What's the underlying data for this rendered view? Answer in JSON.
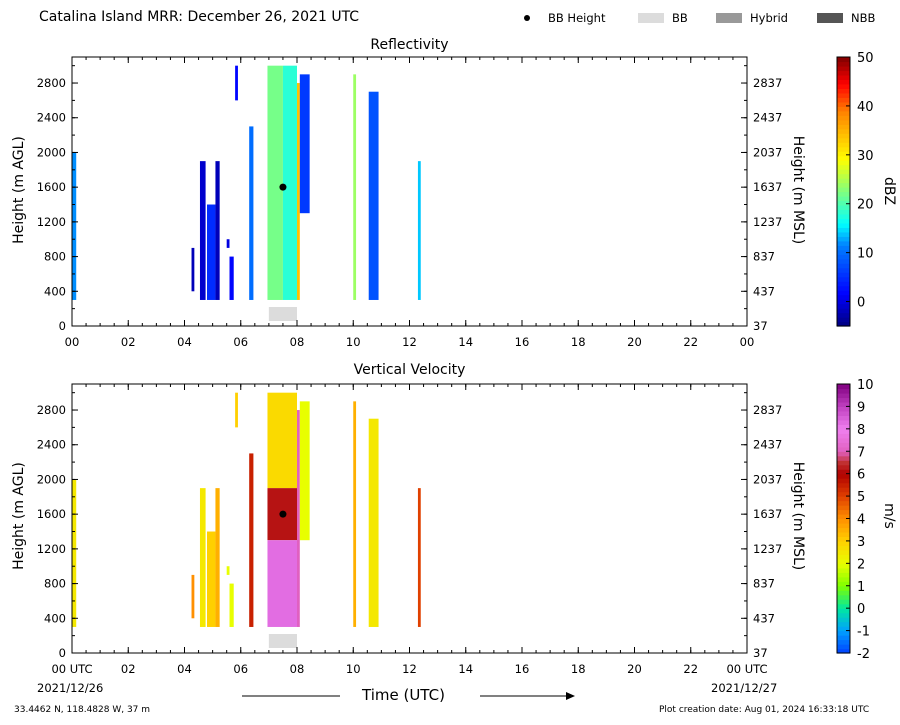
{
  "header": {
    "title": "Catalina Island MRR:  December 26, 2021 UTC",
    "legend": [
      {
        "label": "BB Height",
        "kind": "dot",
        "color": "#000000"
      },
      {
        "label": "BB",
        "kind": "swatch",
        "color": "#dcdcdc"
      },
      {
        "label": "Hybrid",
        "kind": "swatch",
        "color": "#999999"
      },
      {
        "label": "NBB",
        "kind": "swatch",
        "color": "#555555"
      }
    ]
  },
  "axes": {
    "left_label": "Height (m AGL)",
    "right_label": "Height (m MSL)",
    "x_label": "Time (UTC)",
    "y_ticks": [
      "0",
      "400",
      "800",
      "1200",
      "1600",
      "2000",
      "2400",
      "2800"
    ],
    "y_ticks_right": [
      "37",
      "437",
      "837",
      "1237",
      "1637",
      "2037",
      "2437",
      "2837"
    ],
    "x_ticks_top_panel": [
      "00",
      "02",
      "04",
      "06",
      "08",
      "10",
      "12",
      "14",
      "16",
      "18",
      "20",
      "22",
      "00"
    ],
    "x_ticks_bottom_panel": [
      "00 UTC",
      "02",
      "04",
      "06",
      "08",
      "10",
      "12",
      "14",
      "16",
      "18",
      "20",
      "22",
      "00 UTC"
    ],
    "start_date": "2021/12/26",
    "end_date": "2021/12/27"
  },
  "footer": {
    "location": "33.4462 N, 118.4828 W, 37 m",
    "created": "Plot creation date: Aug 01, 2024 16:33:18 UTC"
  },
  "chart_data": [
    {
      "type": "heatmap",
      "title": "Reflectivity",
      "xlabel": "",
      "ylabel": "Height (m AGL)",
      "x_range_hours": [
        0,
        24
      ],
      "ylim": [
        0,
        3100
      ],
      "colorbar": {
        "label": "dBZ",
        "range": [
          -5,
          50
        ],
        "ticks": [
          "0",
          "10",
          "20",
          "30",
          "40",
          "50"
        ]
      },
      "bb_height": [
        {
          "time_hour": 7.5,
          "height_m": 1600
        }
      ],
      "bb_bar": {
        "type": "BB",
        "start_hour": 7.0,
        "end_hour": 8.0
      },
      "echo_columns": [
        {
          "start_hour": 0.0,
          "end_hour": 0.15,
          "bottom_m": 300,
          "top_m": 2000,
          "value": 12
        },
        {
          "start_hour": 4.25,
          "end_hour": 4.35,
          "bottom_m": 400,
          "top_m": 900,
          "value": -2
        },
        {
          "start_hour": 4.55,
          "end_hour": 4.75,
          "bottom_m": 300,
          "top_m": 1900,
          "value": -1
        },
        {
          "start_hour": 4.8,
          "end_hour": 5.1,
          "bottom_m": 300,
          "top_m": 1400,
          "value": 5
        },
        {
          "start_hour": 5.1,
          "end_hour": 5.25,
          "bottom_m": 300,
          "top_m": 1900,
          "value": -2
        },
        {
          "start_hour": 5.5,
          "end_hour": 5.6,
          "bottom_m": 900,
          "top_m": 1000,
          "value": 0
        },
        {
          "start_hour": 5.6,
          "end_hour": 5.75,
          "bottom_m": 300,
          "top_m": 800,
          "value": 2
        },
        {
          "start_hour": 5.8,
          "end_hour": 5.9,
          "bottom_m": 2600,
          "top_m": 3000,
          "value": 2
        },
        {
          "start_hour": 6.3,
          "end_hour": 6.45,
          "bottom_m": 300,
          "top_m": 2300,
          "value": 10
        },
        {
          "start_hour": 6.95,
          "end_hour": 7.5,
          "bottom_m": 300,
          "top_m": 3000,
          "value": 22
        },
        {
          "start_hour": 7.5,
          "end_hour": 8.0,
          "bottom_m": 300,
          "top_m": 3000,
          "value": 18
        },
        {
          "start_hour": 8.0,
          "end_hour": 8.1,
          "bottom_m": 300,
          "top_m": 2800,
          "value": 34
        },
        {
          "start_hour": 8.1,
          "end_hour": 8.45,
          "bottom_m": 1300,
          "top_m": 2900,
          "value": 6
        },
        {
          "start_hour": 10.0,
          "end_hour": 10.1,
          "bottom_m": 300,
          "top_m": 2900,
          "value": 24
        },
        {
          "start_hour": 10.55,
          "end_hour": 10.9,
          "bottom_m": 300,
          "top_m": 2700,
          "value": 8
        },
        {
          "start_hour": 12.3,
          "end_hour": 12.4,
          "bottom_m": 300,
          "top_m": 1900,
          "value": 14
        }
      ]
    },
    {
      "type": "heatmap",
      "title": "Vertical Velocity",
      "xlabel": "Time (UTC)",
      "ylabel": "Height (m AGL)",
      "x_range_hours": [
        0,
        24
      ],
      "ylim": [
        0,
        3100
      ],
      "colorbar": {
        "label": "m/s",
        "range": [
          -2,
          10
        ],
        "ticks": [
          "-2",
          "-1",
          "0",
          "1",
          "2",
          "3",
          "4",
          "5",
          "6",
          "7",
          "8",
          "9",
          "10"
        ]
      },
      "bb_height": [
        {
          "time_hour": 7.5,
          "height_m": 1600
        }
      ],
      "bb_bar": {
        "type": "BB",
        "start_hour": 7.0,
        "end_hour": 8.0
      },
      "echo_columns": [
        {
          "start_hour": 0.0,
          "end_hour": 0.15,
          "bottom_m": 300,
          "top_m": 2000,
          "value": 2.5
        },
        {
          "start_hour": 4.25,
          "end_hour": 4.35,
          "bottom_m": 400,
          "top_m": 900,
          "value": 4
        },
        {
          "start_hour": 4.55,
          "end_hour": 4.75,
          "bottom_m": 300,
          "top_m": 1900,
          "value": 2.5
        },
        {
          "start_hour": 4.8,
          "end_hour": 5.1,
          "bottom_m": 300,
          "top_m": 1400,
          "value": 3
        },
        {
          "start_hour": 5.1,
          "end_hour": 5.25,
          "bottom_m": 300,
          "top_m": 1900,
          "value": 3.5
        },
        {
          "start_hour": 5.5,
          "end_hour": 5.6,
          "bottom_m": 900,
          "top_m": 1000,
          "value": 2
        },
        {
          "start_hour": 5.6,
          "end_hour": 5.75,
          "bottom_m": 300,
          "top_m": 800,
          "value": 2
        },
        {
          "start_hour": 5.8,
          "end_hour": 5.9,
          "bottom_m": 2600,
          "top_m": 3000,
          "value": 3
        },
        {
          "start_hour": 6.3,
          "end_hour": 6.45,
          "bottom_m": 300,
          "top_m": 2300,
          "value": 5.5
        },
        {
          "start_hour": 6.95,
          "end_hour": 8.0,
          "bottom_m": 1900,
          "top_m": 3000,
          "value": 2.8
        },
        {
          "start_hour": 6.95,
          "end_hour": 8.0,
          "bottom_m": 1300,
          "top_m": 1900,
          "value": 6.2
        },
        {
          "start_hour": 6.95,
          "end_hour": 8.0,
          "bottom_m": 300,
          "top_m": 1300,
          "value": 8.3
        },
        {
          "start_hour": 8.0,
          "end_hour": 8.1,
          "bottom_m": 300,
          "top_m": 2800,
          "value": 7
        },
        {
          "start_hour": 8.1,
          "end_hour": 8.45,
          "bottom_m": 1300,
          "top_m": 2900,
          "value": 2
        },
        {
          "start_hour": 10.0,
          "end_hour": 10.1,
          "bottom_m": 300,
          "top_m": 2900,
          "value": 3.5
        },
        {
          "start_hour": 10.55,
          "end_hour": 10.9,
          "bottom_m": 300,
          "top_m": 2700,
          "value": 2.5
        },
        {
          "start_hour": 12.3,
          "end_hour": 12.4,
          "bottom_m": 300,
          "top_m": 1900,
          "value": 5
        }
      ]
    }
  ]
}
